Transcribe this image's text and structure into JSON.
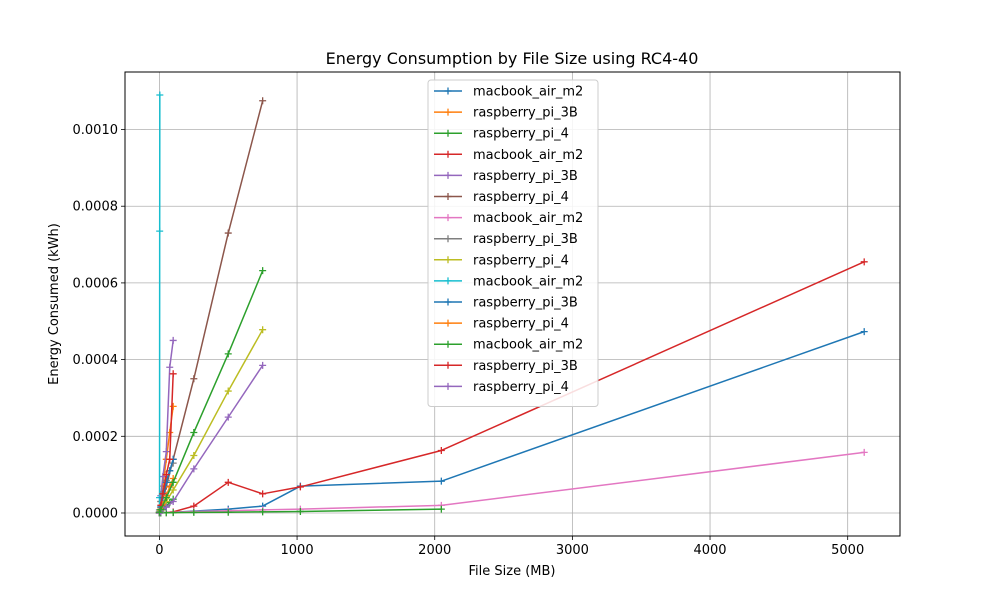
{
  "chart_data": {
    "type": "line",
    "title": "Energy Consumption by File Size using RC4-40",
    "xlabel": "File Size (MB)",
    "ylabel": "Energy Consumed (kWh)",
    "xlim": [
      -250,
      5380
    ],
    "ylim": [
      -6e-05,
      0.00115
    ],
    "xticks": [
      0,
      1000,
      2000,
      3000,
      4000,
      5000
    ],
    "xtick_labels": [
      "0",
      "1000",
      "2000",
      "3000",
      "4000",
      "5000"
    ],
    "yticks": [
      0,
      0.0002,
      0.0004,
      0.0006,
      0.0008,
      0.001
    ],
    "ytick_labels": [
      "0.0000",
      "0.0002",
      "0.0004",
      "0.0006",
      "0.0008",
      "0.0010"
    ],
    "grid": true,
    "legend_position": "top-center",
    "series": [
      {
        "name": "macbook_air_m2",
        "color": "#1f77b4",
        "x": [
          0,
          10,
          50,
          100,
          250,
          500,
          750,
          1024,
          2048,
          5120
        ],
        "y": [
          2e-07,
          4e-07,
          1e-06,
          2e-06,
          5e-06,
          1e-05,
          1.8e-05,
          7e-05,
          8.3e-05,
          0.000473
        ]
      },
      {
        "name": "raspberry_pi_3B",
        "color": "#ff7f0e",
        "x": [
          0,
          10,
          25,
          50,
          75,
          100
        ],
        "y": [
          2e-06,
          3e-05,
          7e-05,
          0.00014,
          0.00021,
          0.000278
        ]
      },
      {
        "name": "raspberry_pi_4",
        "color": "#2ca02c",
        "x": [
          0,
          10,
          25,
          50,
          75,
          100
        ],
        "y": [
          5e-07,
          4e-06,
          9e-06,
          1.8e-05,
          2.7e-05,
          3.6e-05
        ]
      },
      {
        "name": "macbook_air_m2",
        "color": "#d62728",
        "x": [
          0,
          10,
          50,
          100,
          250,
          500,
          750,
          1024,
          2048,
          5120
        ],
        "y": [
          2e-07,
          6e-07,
          1e-06,
          3e-06,
          1.8e-05,
          8e-05,
          5e-05,
          6.8e-05,
          0.000163,
          0.000655
        ]
      },
      {
        "name": "raspberry_pi_3B",
        "color": "#9467bd",
        "x": [
          0,
          10,
          25,
          50,
          75,
          100
        ],
        "y": [
          3e-06,
          4.5e-05,
          9.5e-05,
          0.00016,
          0.00038,
          0.00045
        ]
      },
      {
        "name": "raspberry_pi_4",
        "color": "#8c564b",
        "x": [
          0,
          10,
          50,
          100,
          250,
          500,
          750
        ],
        "y": [
          2e-06,
          1.5e-05,
          7e-05,
          0.00014,
          0.00035,
          0.00073,
          0.001075
        ]
      },
      {
        "name": "macbook_air_m2",
        "color": "#e377c2",
        "x": [
          0,
          10,
          50,
          100,
          250,
          500,
          750,
          1024,
          2048,
          5120
        ],
        "y": [
          2e-07,
          5e-07,
          1e-06,
          2e-06,
          4e-06,
          6e-06,
          8e-06,
          1e-05,
          2e-05,
          0.000158
        ]
      },
      {
        "name": "raspberry_pi_3B",
        "color": "#7f7f7f",
        "x": [
          0,
          10,
          25,
          50,
          75,
          100
        ],
        "y": [
          8e-06,
          3e-05,
          5.5e-05,
          8.5e-05,
          0.00011,
          0.00013
        ]
      },
      {
        "name": "raspberry_pi_4",
        "color": "#bcbd22",
        "x": [
          0,
          10,
          50,
          100,
          250,
          500,
          750
        ],
        "y": [
          1e-06,
          6e-06,
          3e-05,
          6e-05,
          0.00015,
          0.000318,
          0.000478
        ]
      },
      {
        "name": "macbook_air_m2",
        "color": "#17becf",
        "x": [
          0,
          1,
          2,
          3
        ],
        "y": [
          2e-06,
          4e-05,
          0.000735,
          0.00109
        ]
      },
      {
        "name": "raspberry_pi_3B",
        "color": "#1f77b4",
        "x": [
          0,
          10,
          25,
          50,
          75,
          100
        ],
        "y": [
          1e-06,
          1.6e-05,
          4e-05,
          8e-05,
          0.00011,
          0.00014
        ]
      },
      {
        "name": "raspberry_pi_4",
        "color": "#ff7f0e",
        "x": [
          0,
          10,
          25,
          50,
          75,
          100
        ],
        "y": [
          1e-06,
          1e-05,
          2.2e-05,
          4.5e-05,
          6.8e-05,
          9e-05
        ]
      },
      {
        "name": "macbook_air_m2",
        "color": "#2ca02c",
        "x": [
          0,
          10,
          50,
          100,
          250,
          500,
          750,
          1024,
          2048
        ],
        "y": [
          1e-07,
          3e-07,
          6e-07,
          1e-06,
          1.5e-06,
          2e-06,
          3e-06,
          4e-06,
          1e-05
        ]
      },
      {
        "name": "raspberry_pi_3B",
        "color": "#d62728",
        "x": [
          0,
          10,
          25,
          50,
          75,
          100
        ],
        "y": [
          2e-06,
          2e-05,
          5e-05,
          0.0001,
          0.00014,
          0.000363
        ]
      },
      {
        "name": "raspberry_pi_4",
        "color": "#9467bd",
        "x": [
          0,
          10,
          50,
          100,
          250,
          500,
          750
        ],
        "y": [
          5e-07,
          3e-06,
          1.5e-05,
          3e-05,
          0.000115,
          0.00025,
          0.000385
        ]
      },
      {
        "name": "",
        "color": "#2ca02c",
        "x": [
          0,
          10,
          50,
          100,
          250,
          500,
          750
        ],
        "y": [
          2e-06,
          9e-06,
          4e-05,
          8e-05,
          0.00021,
          0.000415,
          0.000632
        ]
      }
    ]
  }
}
